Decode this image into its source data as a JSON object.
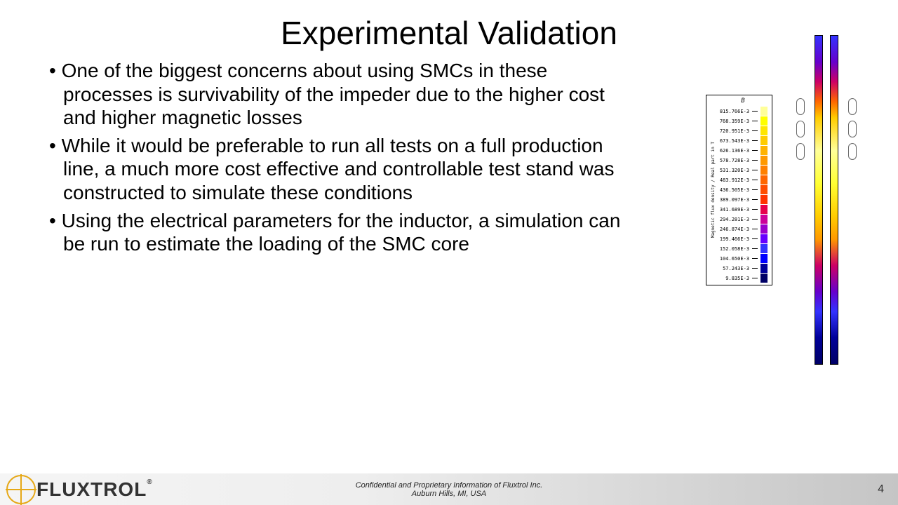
{
  "title": "Experimental Validation",
  "bullets": [
    "One of the biggest concerns about using SMCs in these processes is survivability of the impeder due to the higher cost and higher magnetic losses",
    "While it would be preferable to run all tests on a full production line, a much more cost effective and controllable test stand was constructed to simulate these conditions",
    "Using the electrical parameters for the inductor, a simulation can be run to estimate the loading of the SMC core"
  ],
  "legend": {
    "title": "B",
    "axis_label": "Magnetic flux density / Real part in T",
    "entries": [
      {
        "label": "815.766E-3",
        "color": "#ffff99"
      },
      {
        "label": "768.359E-3",
        "color": "#ffff00"
      },
      {
        "label": "720.951E-3",
        "color": "#ffe600"
      },
      {
        "label": "673.543E-3",
        "color": "#ffcc00"
      },
      {
        "label": "626.136E-3",
        "color": "#ffb300"
      },
      {
        "label": "578.728E-3",
        "color": "#ff9900"
      },
      {
        "label": "531.320E-3",
        "color": "#ff8000"
      },
      {
        "label": "483.912E-3",
        "color": "#ff6600"
      },
      {
        "label": "436.505E-3",
        "color": "#ff4d00"
      },
      {
        "label": "389.097E-3",
        "color": "#ff3300"
      },
      {
        "label": "341.689E-3",
        "color": "#e6004c"
      },
      {
        "label": "294.281E-3",
        "color": "#cc0099"
      },
      {
        "label": "246.874E-3",
        "color": "#9900cc"
      },
      {
        "label": "199.466E-3",
        "color": "#6600ff"
      },
      {
        "label": "152.058E-3",
        "color": "#3333ff"
      },
      {
        "label": "104.650E-3",
        "color": "#0000ff"
      },
      {
        "label": "57.243E-3",
        "color": "#000099"
      },
      {
        "label": "9.835E-3",
        "color": "#000066"
      }
    ]
  },
  "bars": {
    "left_gradient": "linear-gradient(180deg, #3333ff 0%, #6600cc 8%, #cc0066 14%, #ff6600 20%, #ffcc00 25%, #ffff99 35%, #ffff33 45%, #ffcc00 55%, #ff9900 62%, #cc0066 70%, #6600cc 78%, #3333ff 84%, #000099 92%, #000066 100%)",
    "right_gradient": "linear-gradient(180deg, #3333ff 0%, #6600cc 8%, #cc0066 14%, #ff6600 20%, #ffcc00 25%, #ffff99 35%, #ffff33 45%, #ffcc00 55%, #ff9900 62%, #cc0066 70%, #6600cc 78%, #3333ff 84%, #000099 92%, #000066 100%)"
  },
  "footer": {
    "logo_text": "FLUXTROL",
    "confidential_line1": "Confidential and Proprietary Information of Fluxtrol Inc.",
    "confidential_line2": "Auburn Hills, MI, USA",
    "page_number": "4"
  }
}
